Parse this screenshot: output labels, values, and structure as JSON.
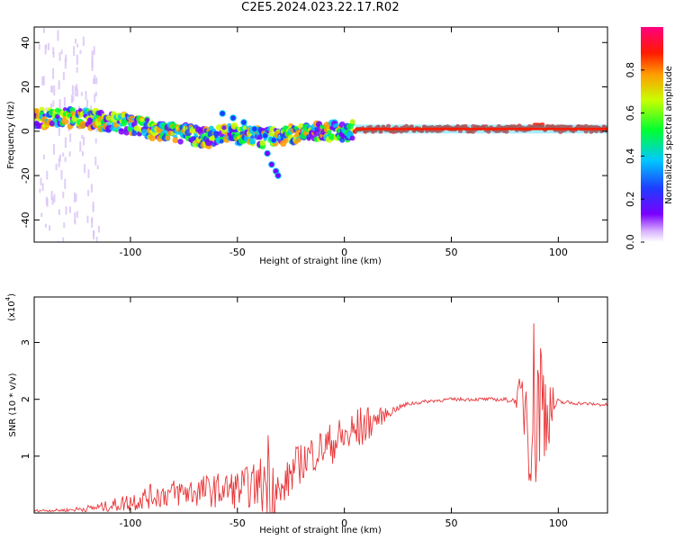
{
  "title": "C2E5.2024.023.22.17.R02",
  "colors": {
    "snr_line": "#e8373a",
    "axis": "#000000",
    "ridge": "#1e3cff"
  },
  "chart_data": [
    {
      "type": "heatmap",
      "title": "C2E5.2024.023.22.17.R02",
      "xlabel": "Height of straight line (km)",
      "ylabel": "Frequency (Hz)",
      "xlim": [
        -145,
        123
      ],
      "ylim": [
        -50,
        47
      ],
      "xticks": [
        -100,
        -50,
        0,
        50,
        100
      ],
      "xtick_labels": [
        "-100",
        "-50",
        "0",
        "50",
        "100"
      ],
      "yticks": [
        -40,
        -20,
        0,
        20,
        40
      ],
      "ytick_labels": [
        "-40",
        "-20",
        "0",
        "20",
        "40"
      ],
      "grid": false,
      "colorbar": {
        "label": "Normalized spectral amplitude",
        "range": [
          0,
          1
        ],
        "ticks": [
          0.0,
          0.2,
          0.4,
          0.6,
          0.8
        ],
        "tick_labels": [
          "0.0",
          "0.2",
          "0.4",
          "0.6",
          "0.8"
        ],
        "colormap": "rainbow (white-violet-blue-cyan-green-yellow-orange-red-magenta)"
      },
      "ridge": {
        "x": [
          -143,
          -135,
          -125,
          -115,
          -105,
          -95,
          -85,
          -75,
          -65,
          -55,
          -45,
          -38,
          -30,
          -20,
          -10,
          0,
          10,
          20,
          40,
          60,
          80,
          90,
          100,
          123
        ],
        "y": [
          6,
          6,
          6,
          5,
          4,
          2,
          0,
          -1,
          -3,
          -1,
          -2,
          -3,
          -2,
          -1,
          0,
          0,
          1,
          1,
          1,
          1,
          1,
          2,
          1,
          1
        ]
      },
      "secondary_branch": {
        "x": [
          -57,
          -52,
          -47,
          -42,
          -37,
          -33
        ],
        "y": [
          8,
          6,
          4,
          1,
          -2,
          -4
        ]
      },
      "low_branch": {
        "x": [
          -36,
          -34,
          -32,
          -31
        ],
        "y": [
          -10,
          -15,
          -18,
          -20
        ]
      }
    },
    {
      "type": "line",
      "xlabel": "Height of straight line (km)",
      "ylabel": "SNR (10 * v/v)",
      "y_multiplier_label": "(x10",
      "y_multiplier_exp": "4",
      "xlim": [
        -145,
        123
      ],
      "ylim": [
        0,
        3.8
      ],
      "xticks": [
        -100,
        -50,
        0,
        50,
        100
      ],
      "xtick_labels": [
        "-100",
        "-50",
        "0",
        "50",
        "100"
      ],
      "yticks": [
        1,
        2,
        3
      ],
      "ytick_labels": [
        "1",
        "2",
        "3"
      ],
      "grid": false,
      "series": [
        {
          "x": [
            -145,
            -130,
            -120,
            -110,
            -100,
            -90,
            -80,
            -70,
            -60,
            -50,
            -40,
            -35,
            -30,
            -25,
            -20,
            -15,
            -10,
            -5,
            0,
            5,
            10,
            15,
            20,
            25,
            30,
            40,
            50,
            60,
            70,
            80,
            85,
            88,
            90,
            92,
            95,
            100,
            110,
            123
          ],
          "y": [
            0.04,
            0.05,
            0.08,
            0.12,
            0.2,
            0.3,
            0.35,
            0.38,
            0.4,
            0.42,
            0.5,
            0.6,
            0.3,
            0.7,
            0.9,
            1.05,
            1.15,
            1.25,
            1.32,
            1.42,
            1.55,
            1.65,
            1.75,
            1.85,
            1.92,
            1.97,
            2.0,
            2.0,
            2.0,
            1.98,
            2.0,
            1.7,
            2.1,
            2.0,
            1.8,
            1.95,
            1.93,
            1.9
          ],
          "spread": [
            0.02,
            0.03,
            0.06,
            0.1,
            0.18,
            0.22,
            0.25,
            0.28,
            0.3,
            0.35,
            0.4,
            1.1,
            0.25,
            0.4,
            0.35,
            0.35,
            0.35,
            0.38,
            0.4,
            0.45,
            0.35,
            0.2,
            0.1,
            0.05,
            0.04,
            0.03,
            0.03,
            0.03,
            0.03,
            0.05,
            1.0,
            1.8,
            1.9,
            1.6,
            0.7,
            0.05,
            0.03,
            0.03
          ]
        }
      ]
    }
  ]
}
